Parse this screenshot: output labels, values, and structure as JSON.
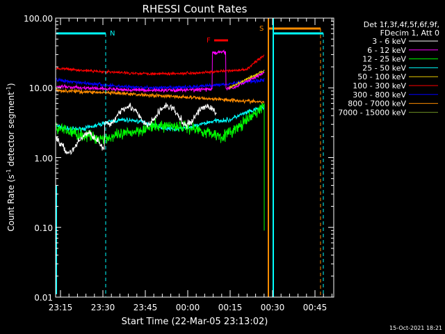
{
  "chart_data": {
    "type": "line",
    "title": "RHESSI Count Rates",
    "xlabel": "Start Time (22-Mar-05 23:13:02)",
    "ylabel_main": "Count Rate (s",
    "ylabel_sup1": "-1",
    "ylabel_mid": " detector segment",
    "ylabel_sup2": "-1",
    "ylabel_end": ")",
    "yscale": "log",
    "ylim": [
      0.01,
      100
    ],
    "x_tick_labels": [
      "23:15",
      "23:30",
      "23:45",
      "00:00",
      "00:15",
      "00:30",
      "00:45"
    ],
    "y_tick_labels": [
      "0.01",
      "0.10",
      "1.00",
      "10.00",
      "100.00"
    ],
    "legend_header": [
      "Det 1f,3f,4f,5f,6f,9f,",
      "FDecim 1, Att 0"
    ],
    "legend_placement": "right",
    "series": [
      {
        "name": "3 - 6 keV",
        "color": "#ffffff"
      },
      {
        "name": "6 - 12 keV",
        "color": "#ff00ff"
      },
      {
        "name": "12 - 25 keV",
        "color": "#00ff00"
      },
      {
        "name": "25 - 50 keV",
        "color": "#00ffff"
      },
      {
        "name": "50 - 100 keV",
        "color": "#e6c800"
      },
      {
        "name": "100 - 300 keV",
        "color": "#ff0000"
      },
      {
        "name": "300 - 800 keV",
        "color": "#0000ff"
      },
      {
        "name": "800 - 7000 keV",
        "color": "#ff8c00"
      },
      {
        "name": "7000 - 15000 keV",
        "color": "#6b8e23"
      }
    ],
    "annotations": [
      {
        "label": "N",
        "color": "#00ffff"
      },
      {
        "label": "F",
        "color": "#ff0000"
      },
      {
        "label": "S",
        "color": "#ff8c00"
      }
    ],
    "timestamp": "15-Oct-2021 18:21"
  }
}
